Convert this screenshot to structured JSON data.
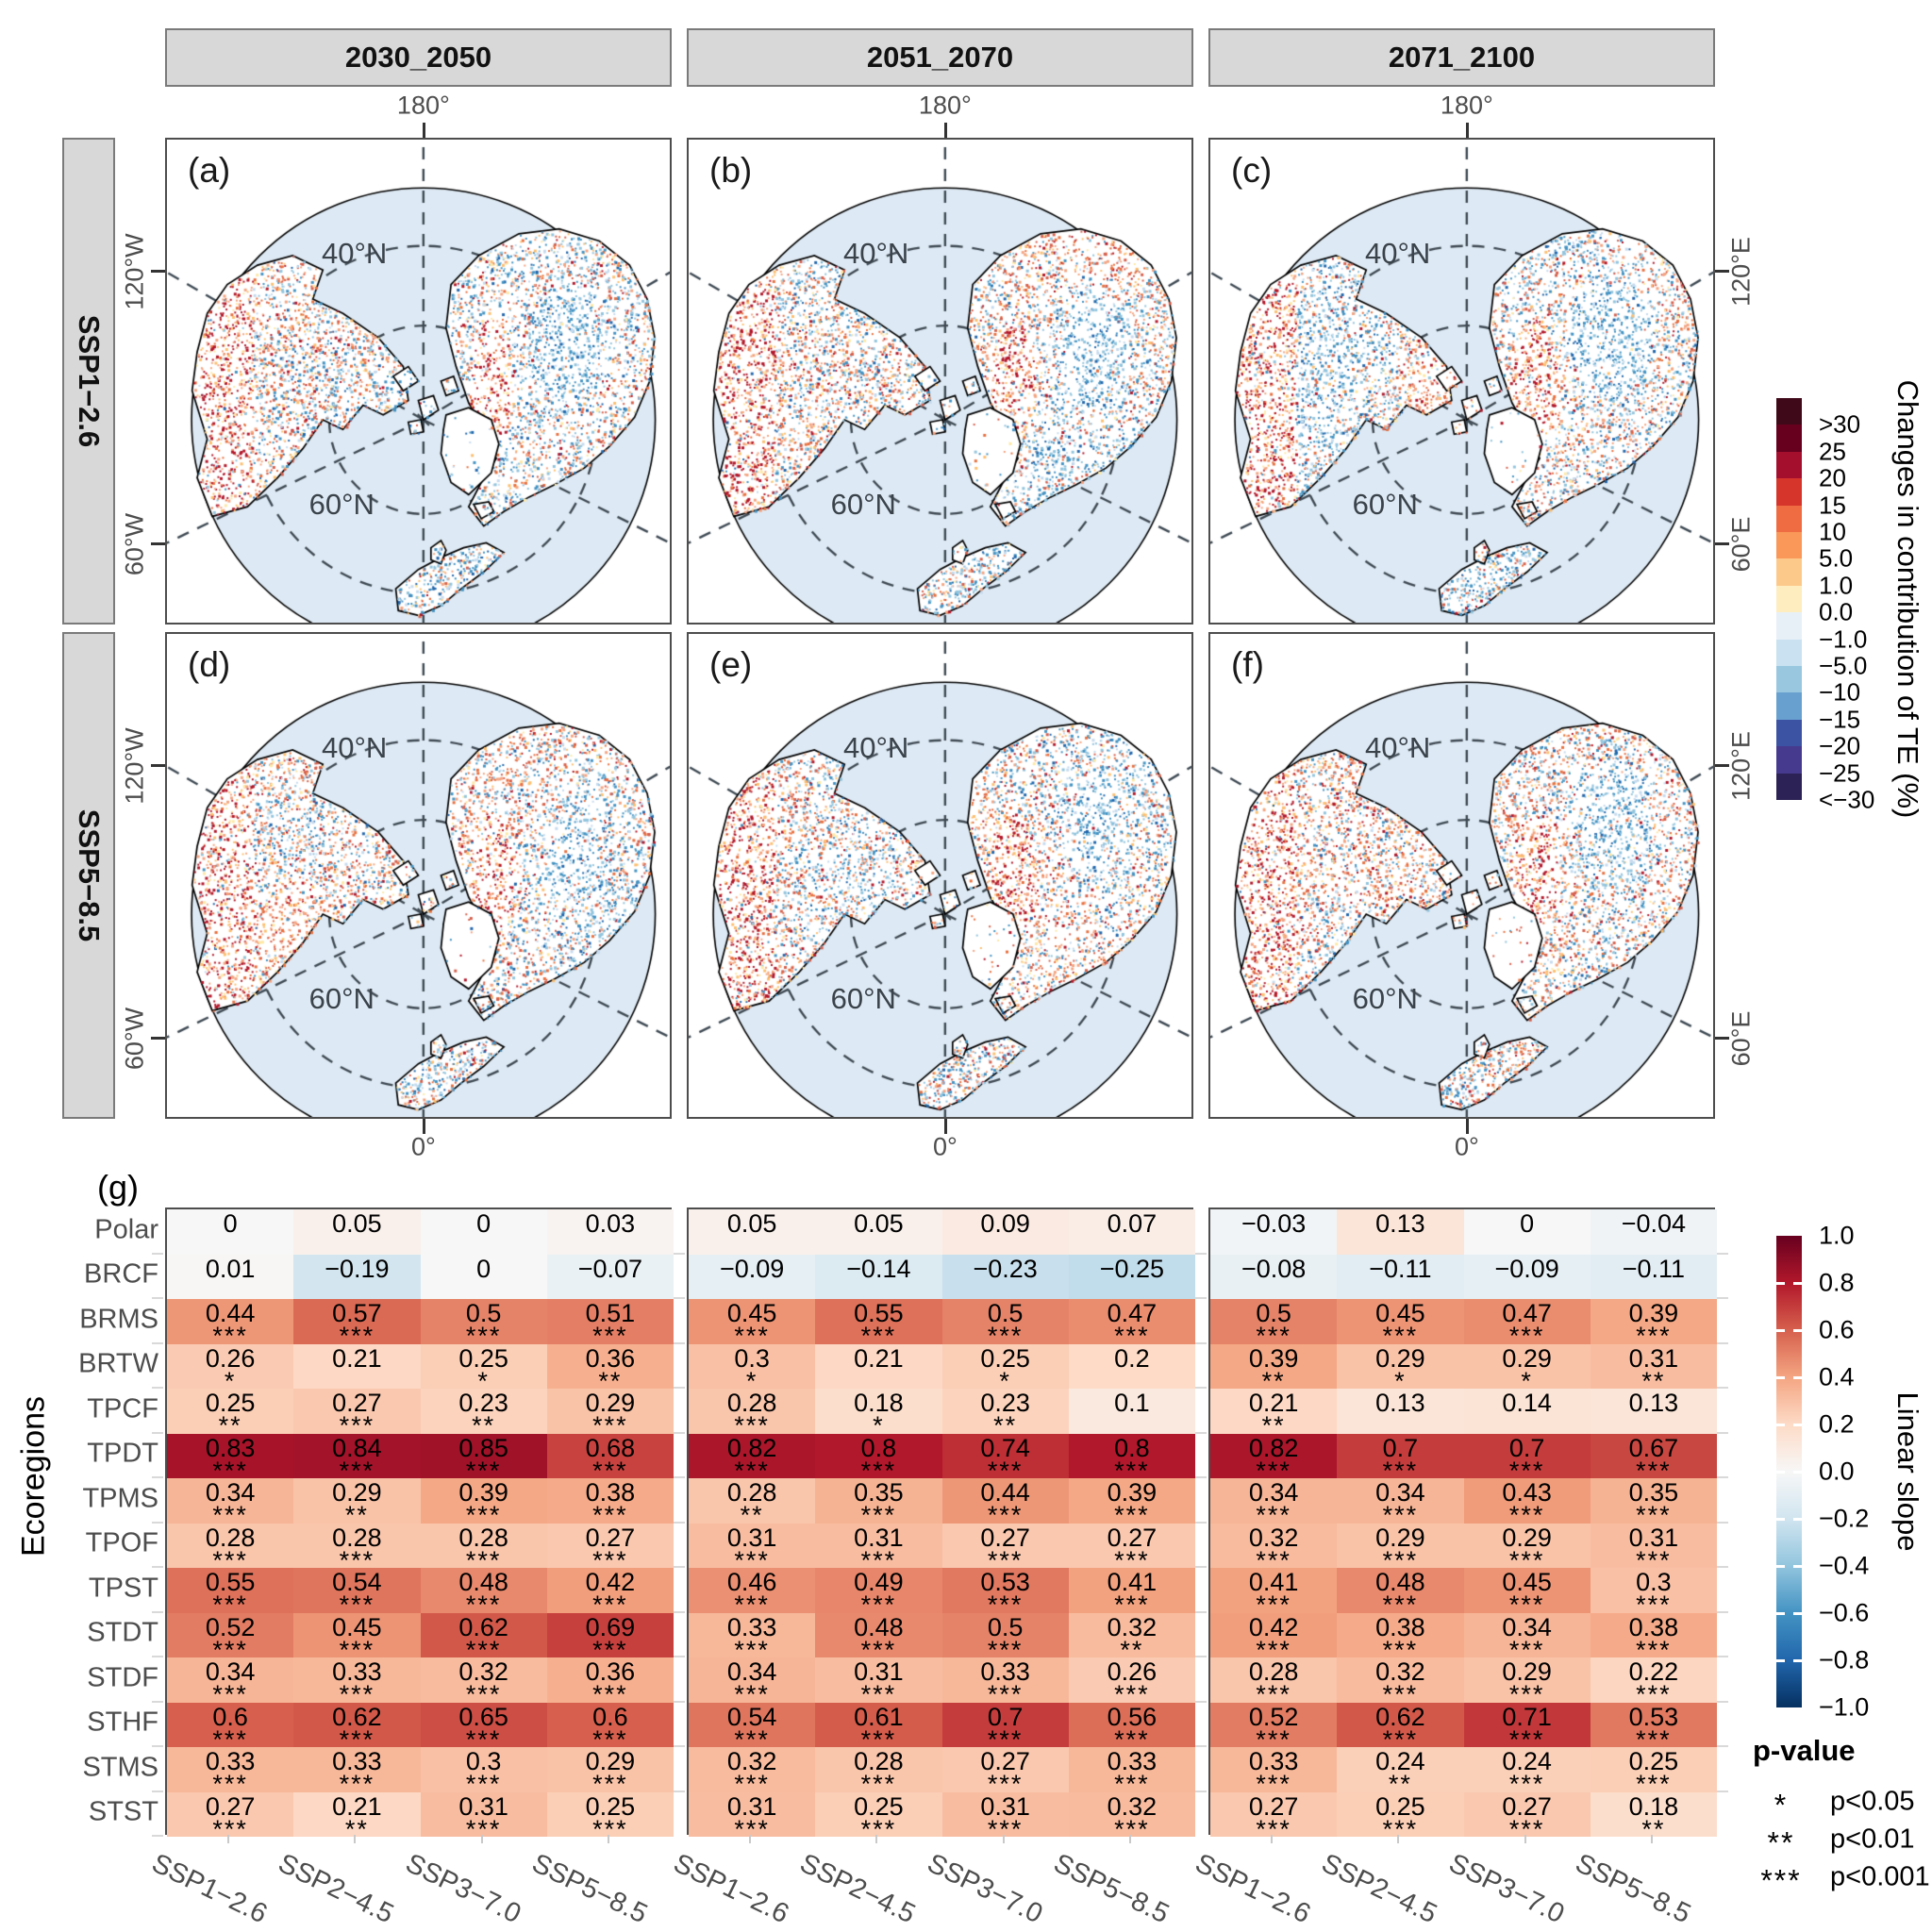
{
  "strips": {
    "periods": [
      "2030_2050",
      "2051_2070",
      "2071_2100"
    ],
    "scenarios": [
      "SSP1−2.6",
      "SSP5−8.5"
    ]
  },
  "map_labels": {
    "panel_letters": [
      "(a)",
      "(b)",
      "(c)",
      "(d)",
      "(e)",
      "(f)"
    ],
    "top_meridian": "180°",
    "bottom_meridian": "0°",
    "lat40": "40°N",
    "lat60": "60°N",
    "left_lons": [
      "120°W",
      "60°W"
    ],
    "right_lons": [
      "120°E",
      "60°E"
    ]
  },
  "map_style": {
    "ocean": "#dde9f4",
    "graticule": "#3f4a54",
    "land_fill": "#ffffff",
    "land_stroke": "#000000",
    "warm_colors": [
      "#fee8a4",
      "#fdbf6f",
      "#f4a582",
      "#e8703f",
      "#d6604d",
      "#b2182b"
    ],
    "cool_colors": [
      "#c6dbef",
      "#92c5de",
      "#4393c3",
      "#2166ac"
    ]
  },
  "te_legend": {
    "title": "Changes in contribution of TE (%)",
    "labels": [
      ">30",
      "25",
      "20",
      "15",
      "10",
      "5.0",
      "1.0",
      "0.0",
      "−1.0",
      "−5.0",
      "−10",
      "−15",
      "−20",
      "−25",
      "<−30"
    ],
    "colors": [
      "#40091a",
      "#67001f",
      "#a50f2e",
      "#d6352c",
      "#ef6b42",
      "#f99858",
      "#fdc98b",
      "#fdedbf",
      "#e7f0f7",
      "#c9e1f0",
      "#99c7e0",
      "#68a0cf",
      "#3c53a4",
      "#463a8e",
      "#2c2255"
    ]
  },
  "heatmap_axis": {
    "panel_label": "(g)",
    "ylabel": "Ecoregions",
    "rows": [
      "Polar",
      "BRCF",
      "BRMS",
      "BRTW",
      "TPCF",
      "TPDT",
      "TPMS",
      "TPOF",
      "TPST",
      "STDT",
      "STDF",
      "STHF",
      "STMS",
      "STST"
    ],
    "cols": [
      "SSP1−2.6",
      "SSP2−4.5",
      "SSP3−7.0",
      "SSP5−8.5"
    ]
  },
  "chart_data": {
    "type": "heatmap",
    "title": "Linear slope of changes in TE contribution by ecoregion",
    "rows": [
      "Polar",
      "BRCF",
      "BRMS",
      "BRTW",
      "TPCF",
      "TPDT",
      "TPMS",
      "TPOF",
      "TPST",
      "STDT",
      "STDF",
      "STHF",
      "STMS",
      "STST"
    ],
    "columns": [
      "SSP1−2.6",
      "SSP2−4.5",
      "SSP3−7.0",
      "SSP5−8.5"
    ],
    "value_range": [
      -1,
      1
    ],
    "panels": [
      {
        "period": "2030_2050",
        "values": [
          [
            "0",
            "0.05",
            "0",
            "0.03"
          ],
          [
            "0.01",
            "−0.19",
            "0",
            "−0.07"
          ],
          [
            "0.44",
            "0.57",
            "0.5",
            "0.51"
          ],
          [
            "0.26",
            "0.21",
            "0.25",
            "0.36"
          ],
          [
            "0.25",
            "0.27",
            "0.23",
            "0.29"
          ],
          [
            "0.83",
            "0.84",
            "0.85",
            "0.68"
          ],
          [
            "0.34",
            "0.29",
            "0.39",
            "0.38"
          ],
          [
            "0.28",
            "0.28",
            "0.28",
            "0.27"
          ],
          [
            "0.55",
            "0.54",
            "0.48",
            "0.42"
          ],
          [
            "0.52",
            "0.45",
            "0.62",
            "0.69"
          ],
          [
            "0.34",
            "0.33",
            "0.32",
            "0.36"
          ],
          [
            "0.6",
            "0.62",
            "0.65",
            "0.6"
          ],
          [
            "0.33",
            "0.33",
            "0.3",
            "0.29"
          ],
          [
            "0.27",
            "0.21",
            "0.31",
            "0.25"
          ]
        ],
        "stars": [
          [
            "",
            "",
            "",
            ""
          ],
          [
            "",
            "",
            "",
            ""
          ],
          [
            "***",
            "***",
            "***",
            "***"
          ],
          [
            "*",
            "",
            "*",
            "**"
          ],
          [
            "**",
            "***",
            "**",
            "***"
          ],
          [
            "***",
            "***",
            "***",
            "***"
          ],
          [
            "***",
            "**",
            "***",
            "***"
          ],
          [
            "***",
            "***",
            "***",
            "***"
          ],
          [
            "***",
            "***",
            "***",
            "***"
          ],
          [
            "***",
            "***",
            "***",
            "***"
          ],
          [
            "***",
            "***",
            "***",
            "***"
          ],
          [
            "***",
            "***",
            "***",
            "***"
          ],
          [
            "***",
            "***",
            "***",
            "***"
          ],
          [
            "***",
            "**",
            "***",
            "***"
          ]
        ]
      },
      {
        "period": "2051_2070",
        "values": [
          [
            "0.05",
            "0.05",
            "0.09",
            "0.07"
          ],
          [
            "−0.09",
            "−0.14",
            "−0.23",
            "−0.25"
          ],
          [
            "0.45",
            "0.55",
            "0.5",
            "0.47"
          ],
          [
            "0.3",
            "0.21",
            "0.25",
            "0.2"
          ],
          [
            "0.28",
            "0.18",
            "0.23",
            "0.1"
          ],
          [
            "0.82",
            "0.8",
            "0.74",
            "0.8"
          ],
          [
            "0.28",
            "0.35",
            "0.44",
            "0.39"
          ],
          [
            "0.31",
            "0.31",
            "0.27",
            "0.27"
          ],
          [
            "0.46",
            "0.49",
            "0.53",
            "0.41"
          ],
          [
            "0.33",
            "0.48",
            "0.5",
            "0.32"
          ],
          [
            "0.34",
            "0.31",
            "0.33",
            "0.26"
          ],
          [
            "0.54",
            "0.61",
            "0.7",
            "0.56"
          ],
          [
            "0.32",
            "0.28",
            "0.27",
            "0.33"
          ],
          [
            "0.31",
            "0.25",
            "0.31",
            "0.32"
          ]
        ],
        "stars": [
          [
            "",
            "",
            "",
            ""
          ],
          [
            "",
            "",
            "",
            ""
          ],
          [
            "***",
            "***",
            "***",
            "***"
          ],
          [
            "*",
            "",
            "*",
            ""
          ],
          [
            "***",
            "*",
            "**",
            ""
          ],
          [
            "***",
            "***",
            "***",
            "***"
          ],
          [
            "**",
            "***",
            "***",
            "***"
          ],
          [
            "***",
            "***",
            "***",
            "***"
          ],
          [
            "***",
            "***",
            "***",
            "***"
          ],
          [
            "***",
            "***",
            "***",
            "**"
          ],
          [
            "***",
            "***",
            "***",
            "***"
          ],
          [
            "***",
            "***",
            "***",
            "***"
          ],
          [
            "***",
            "***",
            "***",
            "***"
          ],
          [
            "***",
            "***",
            "***",
            "***"
          ]
        ]
      },
      {
        "period": "2071_2100",
        "values": [
          [
            "−0.03",
            "0.13",
            "0",
            "−0.04"
          ],
          [
            "−0.08",
            "−0.11",
            "−0.09",
            "−0.11"
          ],
          [
            "0.5",
            "0.45",
            "0.47",
            "0.39"
          ],
          [
            "0.39",
            "0.29",
            "0.29",
            "0.31"
          ],
          [
            "0.21",
            "0.13",
            "0.14",
            "0.13"
          ],
          [
            "0.82",
            "0.7",
            "0.7",
            "0.67"
          ],
          [
            "0.34",
            "0.34",
            "0.43",
            "0.35"
          ],
          [
            "0.32",
            "0.29",
            "0.29",
            "0.31"
          ],
          [
            "0.41",
            "0.48",
            "0.45",
            "0.3"
          ],
          [
            "0.42",
            "0.38",
            "0.34",
            "0.38"
          ],
          [
            "0.28",
            "0.32",
            "0.29",
            "0.22"
          ],
          [
            "0.52",
            "0.62",
            "0.71",
            "0.53"
          ],
          [
            "0.33",
            "0.24",
            "0.24",
            "0.25"
          ],
          [
            "0.27",
            "0.25",
            "0.27",
            "0.18"
          ]
        ],
        "stars": [
          [
            "",
            "",
            "",
            ""
          ],
          [
            "",
            "",
            "",
            ""
          ],
          [
            "***",
            "***",
            "***",
            "***"
          ],
          [
            "**",
            "*",
            "*",
            "**"
          ],
          [
            "**",
            "",
            "",
            ""
          ],
          [
            "***",
            "***",
            "***",
            "***"
          ],
          [
            "***",
            "***",
            "***",
            "***"
          ],
          [
            "***",
            "***",
            "***",
            "***"
          ],
          [
            "***",
            "***",
            "***",
            "***"
          ],
          [
            "***",
            "***",
            "***",
            "***"
          ],
          [
            "***",
            "***",
            "***",
            "***"
          ],
          [
            "***",
            "***",
            "***",
            "***"
          ],
          [
            "***",
            "**",
            "***",
            "***"
          ],
          [
            "***",
            "***",
            "***",
            "**"
          ]
        ]
      }
    ]
  },
  "slope_legend": {
    "title": "Linear slope",
    "ticks": [
      "1.0",
      "0.8",
      "0.6",
      "0.4",
      "0.2",
      "0.0",
      "−0.2",
      "−0.4",
      "−0.6",
      "−0.8",
      "−1.0"
    ],
    "stops": [
      {
        "v": 1.0,
        "c": "#67001f"
      },
      {
        "v": 0.8,
        "c": "#b2182b"
      },
      {
        "v": 0.6,
        "c": "#d6604d"
      },
      {
        "v": 0.4,
        "c": "#f4a582"
      },
      {
        "v": 0.2,
        "c": "#fddbc7"
      },
      {
        "v": 0.0,
        "c": "#f7f7f7"
      },
      {
        "v": -0.2,
        "c": "#d1e5f0"
      },
      {
        "v": -0.4,
        "c": "#92c5de"
      },
      {
        "v": -0.6,
        "c": "#4393c3"
      },
      {
        "v": -0.8,
        "c": "#2166ac"
      },
      {
        "v": -1.0,
        "c": "#053061"
      }
    ]
  },
  "pvalue_legend": {
    "title": "p-value",
    "entries": [
      {
        "symbol": "*",
        "label": "p<0.05"
      },
      {
        "symbol": "**",
        "label": "p<0.01"
      },
      {
        "symbol": "***",
        "label": "p<0.001"
      }
    ]
  }
}
